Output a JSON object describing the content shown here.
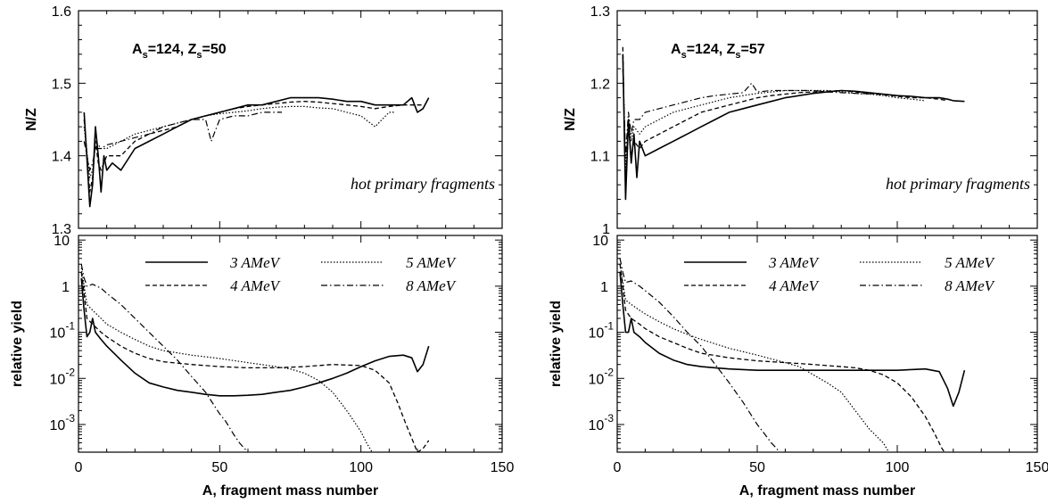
{
  "figure": {
    "left": {
      "label_main": "A",
      "label_sub1": "s",
      "label_mid": "=124, Z",
      "label_sub2": "s",
      "label_end": "=50"
    },
    "right": {
      "label_main": "A",
      "label_sub1": "s",
      "label_mid": "=124, Z",
      "label_sub2": "s",
      "label_end": "=57"
    }
  },
  "chart_data": [
    {
      "type": "line",
      "panel": "left-top",
      "ylabel": "N/Z",
      "xlim": [
        0,
        150
      ],
      "ylim": [
        1.3,
        1.6
      ],
      "yticks": [
        "1.3",
        "1.4",
        "1.5",
        "1.6"
      ],
      "ytick_values": [
        1.3,
        1.4,
        1.5,
        1.6
      ],
      "annotation": "hot primary fragments",
      "series": [
        {
          "name": "3 AMeV",
          "x": [
            2,
            4,
            5,
            6,
            7,
            8,
            9,
            10,
            12,
            15,
            20,
            25,
            30,
            35,
            40,
            45,
            50,
            55,
            60,
            65,
            70,
            75,
            80,
            85,
            90,
            95,
            100,
            105,
            110,
            115,
            118,
            120,
            122,
            124
          ],
          "y": [
            1.46,
            1.33,
            1.36,
            1.44,
            1.4,
            1.35,
            1.4,
            1.38,
            1.39,
            1.38,
            1.41,
            1.42,
            1.43,
            1.44,
            1.45,
            1.455,
            1.46,
            1.465,
            1.47,
            1.47,
            1.475,
            1.48,
            1.48,
            1.48,
            1.478,
            1.475,
            1.475,
            1.47,
            1.47,
            1.47,
            1.48,
            1.46,
            1.465,
            1.48
          ]
        },
        {
          "name": "4 AMeV",
          "x": [
            2,
            4,
            5,
            6,
            7,
            8,
            10,
            15,
            20,
            25,
            30,
            35,
            40,
            45,
            50,
            55,
            60,
            65,
            70,
            75,
            80,
            85,
            90,
            95,
            100,
            105,
            110,
            115,
            118,
            122
          ],
          "y": [
            1.45,
            1.35,
            1.37,
            1.42,
            1.39,
            1.38,
            1.4,
            1.4,
            1.42,
            1.43,
            1.435,
            1.44,
            1.45,
            1.455,
            1.46,
            1.465,
            1.468,
            1.47,
            1.472,
            1.474,
            1.475,
            1.474,
            1.472,
            1.47,
            1.468,
            1.465,
            1.468,
            1.47,
            1.47,
            1.47
          ]
        },
        {
          "name": "5 AMeV",
          "x": [
            2,
            4,
            5,
            6,
            8,
            10,
            15,
            20,
            25,
            30,
            35,
            40,
            45,
            50,
            55,
            60,
            65,
            70,
            75,
            80,
            85,
            90,
            95,
            100,
            105,
            110,
            112
          ],
          "y": [
            1.44,
            1.37,
            1.38,
            1.42,
            1.41,
            1.41,
            1.42,
            1.43,
            1.435,
            1.44,
            1.445,
            1.45,
            1.455,
            1.458,
            1.46,
            1.462,
            1.465,
            1.467,
            1.468,
            1.468,
            1.466,
            1.465,
            1.46,
            1.455,
            1.44,
            1.46,
            1.46
          ]
        },
        {
          "name": "8 AMeV",
          "x": [
            2,
            4,
            5,
            6,
            8,
            10,
            15,
            20,
            25,
            30,
            35,
            40,
            45,
            47,
            50,
            55,
            60,
            65,
            70,
            72
          ],
          "y": [
            1.42,
            1.38,
            1.39,
            1.41,
            1.41,
            1.415,
            1.42,
            1.425,
            1.43,
            1.44,
            1.445,
            1.45,
            1.45,
            1.42,
            1.45,
            1.455,
            1.455,
            1.46,
            1.46,
            1.46
          ]
        }
      ]
    },
    {
      "type": "line",
      "panel": "left-bottom",
      "ylabel": "relative yield",
      "xlabel": "A, fragment mass number",
      "xlim": [
        0,
        150
      ],
      "xticks": [
        "0",
        "50",
        "100",
        "150"
      ],
      "xtick_values": [
        0,
        50,
        100,
        150
      ],
      "ylim_log10": [
        -3.6,
        1.1
      ],
      "yscale": "log",
      "ytick_labels": [
        {
          "base": "10",
          "exp": ""
        },
        {
          "base": "1",
          "exp": ""
        },
        {
          "base": "10",
          "exp": "-1"
        },
        {
          "base": "10",
          "exp": "-2"
        },
        {
          "base": "10",
          "exp": "-3"
        }
      ],
      "ytick_values": [
        10,
        1,
        0.1,
        0.01,
        0.001
      ],
      "legend": {
        "placement": "top-center",
        "entries": [
          "3 AMeV",
          "4 AMeV",
          "5 AMeV",
          "8 AMeV"
        ]
      },
      "series": [
        {
          "name": "3 AMeV",
          "x": [
            1,
            2,
            3,
            4,
            5,
            6,
            8,
            10,
            15,
            20,
            25,
            30,
            35,
            40,
            45,
            50,
            55,
            60,
            65,
            70,
            75,
            80,
            85,
            90,
            95,
            100,
            105,
            110,
            115,
            118,
            120,
            122,
            124
          ],
          "y": [
            1.5,
            0.3,
            0.08,
            0.1,
            0.2,
            0.1,
            0.07,
            0.05,
            0.025,
            0.013,
            0.008,
            0.0065,
            0.0055,
            0.005,
            0.0045,
            0.0042,
            0.0042,
            0.0043,
            0.0045,
            0.005,
            0.0055,
            0.0065,
            0.008,
            0.01,
            0.013,
            0.018,
            0.024,
            0.03,
            0.032,
            0.028,
            0.014,
            0.02,
            0.05
          ]
        },
        {
          "name": "4 AMeV",
          "x": [
            1,
            2,
            3,
            5,
            8,
            10,
            15,
            20,
            25,
            30,
            40,
            50,
            60,
            70,
            80,
            90,
            100,
            105,
            110,
            113,
            116,
            118,
            120,
            122,
            124
          ],
          "y": [
            2,
            0.7,
            0.2,
            0.15,
            0.1,
            0.08,
            0.05,
            0.035,
            0.027,
            0.023,
            0.02,
            0.018,
            0.017,
            0.017,
            0.018,
            0.02,
            0.019,
            0.015,
            0.008,
            0.003,
            0.001,
            0.0005,
            0.00025,
            0.0003,
            0.00045
          ]
        },
        {
          "name": "5 AMeV",
          "x": [
            1,
            2,
            3,
            5,
            8,
            10,
            15,
            20,
            25,
            30,
            40,
            50,
            60,
            70,
            75,
            80,
            85,
            90,
            95,
            100,
            102,
            104,
            106
          ],
          "y": [
            2.5,
            1,
            0.4,
            0.3,
            0.2,
            0.15,
            0.1,
            0.07,
            0.05,
            0.04,
            0.032,
            0.027,
            0.022,
            0.018,
            0.016,
            0.013,
            0.009,
            0.005,
            0.002,
            0.0007,
            0.0004,
            0.00025,
            0.00015
          ]
        },
        {
          "name": "8 AMeV",
          "x": [
            1,
            2,
            3,
            5,
            8,
            10,
            15,
            20,
            25,
            30,
            35,
            40,
            45,
            50,
            52,
            55,
            57,
            60
          ],
          "y": [
            3,
            1.5,
            1,
            1.1,
            0.9,
            0.7,
            0.4,
            0.2,
            0.1,
            0.05,
            0.025,
            0.011,
            0.005,
            0.0017,
            0.0012,
            0.0006,
            0.0004,
            0.00025
          ]
        }
      ]
    },
    {
      "type": "line",
      "panel": "right-top",
      "ylabel": "N/Z",
      "xlim": [
        0,
        150
      ],
      "ylim": [
        1.0,
        1.3
      ],
      "yticks": [
        "1",
        "1.1",
        "1.2",
        "1.3"
      ],
      "ytick_values": [
        1.0,
        1.1,
        1.2,
        1.3
      ],
      "annotation": "hot primary fragments",
      "series": [
        {
          "name": "3 AMeV",
          "x": [
            2,
            3,
            4,
            5,
            6,
            7,
            8,
            10,
            15,
            20,
            25,
            30,
            35,
            40,
            45,
            50,
            55,
            60,
            65,
            70,
            75,
            80,
            85,
            90,
            95,
            100,
            105,
            110,
            115,
            118,
            120,
            124
          ],
          "y": [
            1.24,
            1.04,
            1.15,
            1.09,
            1.13,
            1.07,
            1.12,
            1.1,
            1.11,
            1.12,
            1.13,
            1.14,
            1.15,
            1.16,
            1.165,
            1.17,
            1.175,
            1.18,
            1.183,
            1.186,
            1.188,
            1.19,
            1.189,
            1.187,
            1.185,
            1.183,
            1.182,
            1.18,
            1.18,
            1.178,
            1.176,
            1.175
          ]
        },
        {
          "name": "4 AMeV",
          "x": [
            2,
            3,
            4,
            5,
            6,
            8,
            10,
            15,
            20,
            25,
            30,
            35,
            40,
            45,
            50,
            55,
            60,
            65,
            70,
            75,
            80,
            85,
            90,
            95,
            100,
            105,
            110,
            115,
            118
          ],
          "y": [
            1.25,
            1.05,
            1.14,
            1.1,
            1.12,
            1.11,
            1.12,
            1.13,
            1.14,
            1.15,
            1.16,
            1.165,
            1.17,
            1.175,
            1.18,
            1.183,
            1.185,
            1.187,
            1.188,
            1.189,
            1.19,
            1.188,
            1.186,
            1.184,
            1.182,
            1.18,
            1.18,
            1.178,
            1.176
          ]
        },
        {
          "name": "5 AMeV",
          "x": [
            2,
            3,
            4,
            5,
            6,
            8,
            10,
            15,
            20,
            25,
            30,
            35,
            40,
            45,
            50,
            55,
            60,
            65,
            70,
            75,
            80,
            85,
            90,
            95,
            100,
            105,
            110
          ],
          "y": [
            1.24,
            1.08,
            1.15,
            1.12,
            1.14,
            1.13,
            1.14,
            1.15,
            1.16,
            1.165,
            1.17,
            1.175,
            1.18,
            1.183,
            1.186,
            1.188,
            1.19,
            1.19,
            1.19,
            1.19,
            1.188,
            1.186,
            1.185,
            1.183,
            1.18,
            1.178,
            1.176
          ]
        },
        {
          "name": "8 AMeV",
          "x": [
            2,
            3,
            4,
            5,
            6,
            8,
            10,
            15,
            20,
            25,
            30,
            35,
            40,
            45,
            48,
            50,
            55,
            60,
            65,
            70,
            75,
            80,
            85,
            90
          ],
          "y": [
            1.22,
            1.1,
            1.16,
            1.13,
            1.15,
            1.15,
            1.16,
            1.165,
            1.17,
            1.175,
            1.18,
            1.183,
            1.185,
            1.187,
            1.2,
            1.188,
            1.19,
            1.19,
            1.19,
            1.19,
            1.188,
            1.187,
            1.186,
            1.185
          ]
        }
      ]
    },
    {
      "type": "line",
      "panel": "right-bottom",
      "ylabel": "relative yield",
      "xlabel": "A, fragment mass number",
      "xlim": [
        0,
        150
      ],
      "xticks": [
        "0",
        "50",
        "100",
        "150"
      ],
      "xtick_values": [
        0,
        50,
        100,
        150
      ],
      "ylim_log10": [
        -3.6,
        1.1
      ],
      "yscale": "log",
      "ytick_labels": [
        {
          "base": "10",
          "exp": ""
        },
        {
          "base": "1",
          "exp": ""
        },
        {
          "base": "10",
          "exp": "-1"
        },
        {
          "base": "10",
          "exp": "-2"
        },
        {
          "base": "10",
          "exp": "-3"
        }
      ],
      "ytick_values": [
        10,
        1,
        0.1,
        0.01,
        0.001
      ],
      "legend": {
        "placement": "top-center",
        "entries": [
          "3 AMeV",
          "4 AMeV",
          "5 AMeV",
          "8 AMeV"
        ]
      },
      "series": [
        {
          "name": "3 AMeV",
          "x": [
            1,
            2,
            3,
            4,
            5,
            6,
            8,
            10,
            15,
            20,
            25,
            30,
            35,
            40,
            50,
            60,
            70,
            80,
            90,
            100,
            110,
            115,
            118,
            120,
            122,
            124
          ],
          "y": [
            2,
            0.4,
            0.1,
            0.1,
            0.2,
            0.1,
            0.08,
            0.06,
            0.035,
            0.025,
            0.02,
            0.018,
            0.017,
            0.016,
            0.015,
            0.015,
            0.015,
            0.015,
            0.015,
            0.015,
            0.016,
            0.014,
            0.006,
            0.0025,
            0.005,
            0.015
          ]
        },
        {
          "name": "4 AMeV",
          "x": [
            1,
            2,
            3,
            5,
            8,
            10,
            15,
            20,
            25,
            30,
            40,
            50,
            60,
            70,
            80,
            85,
            90,
            95,
            100,
            105,
            110,
            113,
            116,
            118
          ],
          "y": [
            3,
            1,
            0.3,
            0.2,
            0.15,
            0.12,
            0.08,
            0.06,
            0.045,
            0.035,
            0.028,
            0.024,
            0.022,
            0.02,
            0.018,
            0.017,
            0.015,
            0.012,
            0.008,
            0.004,
            0.0015,
            0.0007,
            0.0003,
            0.0002
          ]
        },
        {
          "name": "5 AMeV",
          "x": [
            1,
            2,
            3,
            5,
            8,
            10,
            15,
            20,
            25,
            30,
            40,
            50,
            60,
            65,
            70,
            75,
            80,
            85,
            90,
            95,
            98,
            100
          ],
          "y": [
            3,
            1.2,
            0.5,
            0.4,
            0.3,
            0.25,
            0.17,
            0.12,
            0.09,
            0.07,
            0.045,
            0.032,
            0.022,
            0.018,
            0.012,
            0.008,
            0.005,
            0.002,
            0.0008,
            0.0004,
            0.0002,
            0.00015
          ]
        },
        {
          "name": "8 AMeV",
          "x": [
            1,
            2,
            3,
            5,
            8,
            10,
            15,
            20,
            25,
            30,
            35,
            40,
            45,
            50,
            52,
            55,
            57,
            60
          ],
          "y": [
            4,
            2,
            1.2,
            1.3,
            1.0,
            0.8,
            0.45,
            0.22,
            0.1,
            0.05,
            0.02,
            0.008,
            0.003,
            0.001,
            0.0007,
            0.0004,
            0.0003,
            0.00015
          ]
        }
      ]
    }
  ]
}
